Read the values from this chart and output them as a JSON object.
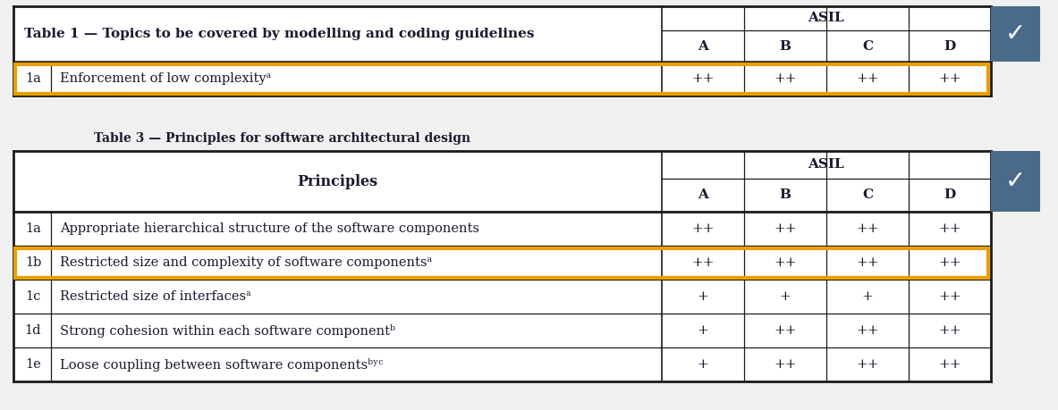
{
  "bg_color": "#f0f0f0",
  "table_bg": "#ffffff",
  "table1": {
    "title": "Table 1 — Topics to be covered by modelling and coding guidelines",
    "header_asil": "ASIL",
    "cols": [
      "A",
      "B",
      "C",
      "D"
    ],
    "rows": [
      {
        "id": "1a",
        "text": "Enforcement of low complexityᵃ",
        "values": [
          "++",
          "++",
          "++",
          "++"
        ]
      }
    ],
    "highlight_rows": [
      0
    ],
    "highlight_color": "#E8A000"
  },
  "table3": {
    "title": "Table 3 — Principles for software architectural design",
    "header_asil": "ASIL",
    "header_principles": "Principles",
    "cols": [
      "A",
      "B",
      "C",
      "D"
    ],
    "rows": [
      {
        "id": "1a",
        "text": "Appropriate hierarchical structure of the software components",
        "values": [
          "++",
          "++",
          "++",
          "++"
        ]
      },
      {
        "id": "1b",
        "text": "Restricted size and complexity of software componentsᵃ",
        "values": [
          "++",
          "++",
          "++",
          "++"
        ]
      },
      {
        "id": "1c",
        "text": "Restricted size of interfacesᵃ",
        "values": [
          "+",
          "+",
          "+",
          "++"
        ]
      },
      {
        "id": "1d",
        "text": "Strong cohesion within each software componentᵇ",
        "values": [
          "+",
          "++",
          "++",
          "++"
        ]
      },
      {
        "id": "1e",
        "text": "Loose coupling between software componentsᵇʸᶜ",
        "values": [
          "+",
          "++",
          "++",
          "++"
        ]
      }
    ],
    "highlight_rows": [
      1
    ],
    "highlight_color": "#E8A000"
  },
  "badge_color": "#4a6a8a",
  "badge_check": "✓",
  "border_color": "#1a1a1a",
  "text_color": "#1a1a2e"
}
